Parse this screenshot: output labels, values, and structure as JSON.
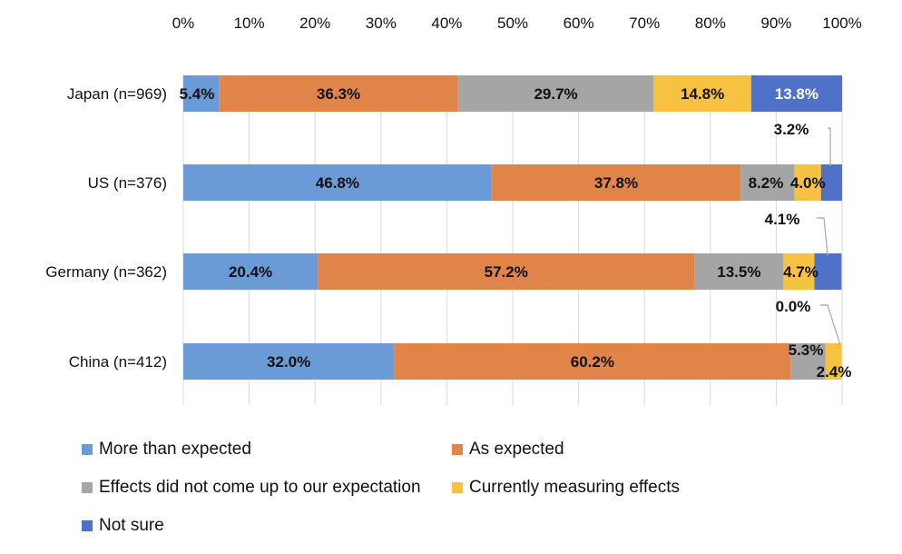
{
  "chart_data": {
    "type": "bar",
    "orientation": "horizontal",
    "stacked": true,
    "categories": [
      "Japan (n=969)",
      "US (n=376)",
      "Germany (n=362)",
      "China (n=412)"
    ],
    "series": [
      {
        "name": "More than expected",
        "color": "#6a9bd6",
        "values": [
          5.4,
          46.8,
          20.4,
          32.0
        ],
        "labels": [
          "5.4%",
          "46.8%",
          "20.4%",
          "32.0%"
        ]
      },
      {
        "name": "As expected",
        "color": "#e0844a",
        "values": [
          36.3,
          37.8,
          57.2,
          60.2
        ],
        "labels": [
          "36.3%",
          "37.8%",
          "57.2%",
          "60.2%"
        ]
      },
      {
        "name": "Effects did not come up to our expectation",
        "color": "#a5a5a5",
        "values": [
          29.7,
          8.2,
          13.5,
          5.3
        ],
        "labels": [
          "29.7%",
          "8.2%",
          "13.5%",
          "5.3%"
        ]
      },
      {
        "name": "Currently measuring effects",
        "color": "#f7c242",
        "values": [
          14.8,
          4.0,
          4.7,
          2.4
        ],
        "labels": [
          "14.8%",
          "4.0%",
          "4.7%",
          "2.4%"
        ]
      },
      {
        "name": "Not sure",
        "color": "#4f71c7",
        "values": [
          13.8,
          3.2,
          4.1,
          0.0
        ],
        "labels": [
          "13.8%",
          "3.2%",
          "4.1%",
          "0.0%"
        ]
      }
    ],
    "xaxis": {
      "ticks": [
        "0%",
        "10%",
        "20%",
        "30%",
        "40%",
        "50%",
        "60%",
        "70%",
        "80%",
        "90%",
        "100%"
      ],
      "range": [
        0,
        100
      ],
      "position": "top"
    },
    "grid": "vertical",
    "legend": "bottom",
    "xlabel": "",
    "ylabel": ""
  }
}
